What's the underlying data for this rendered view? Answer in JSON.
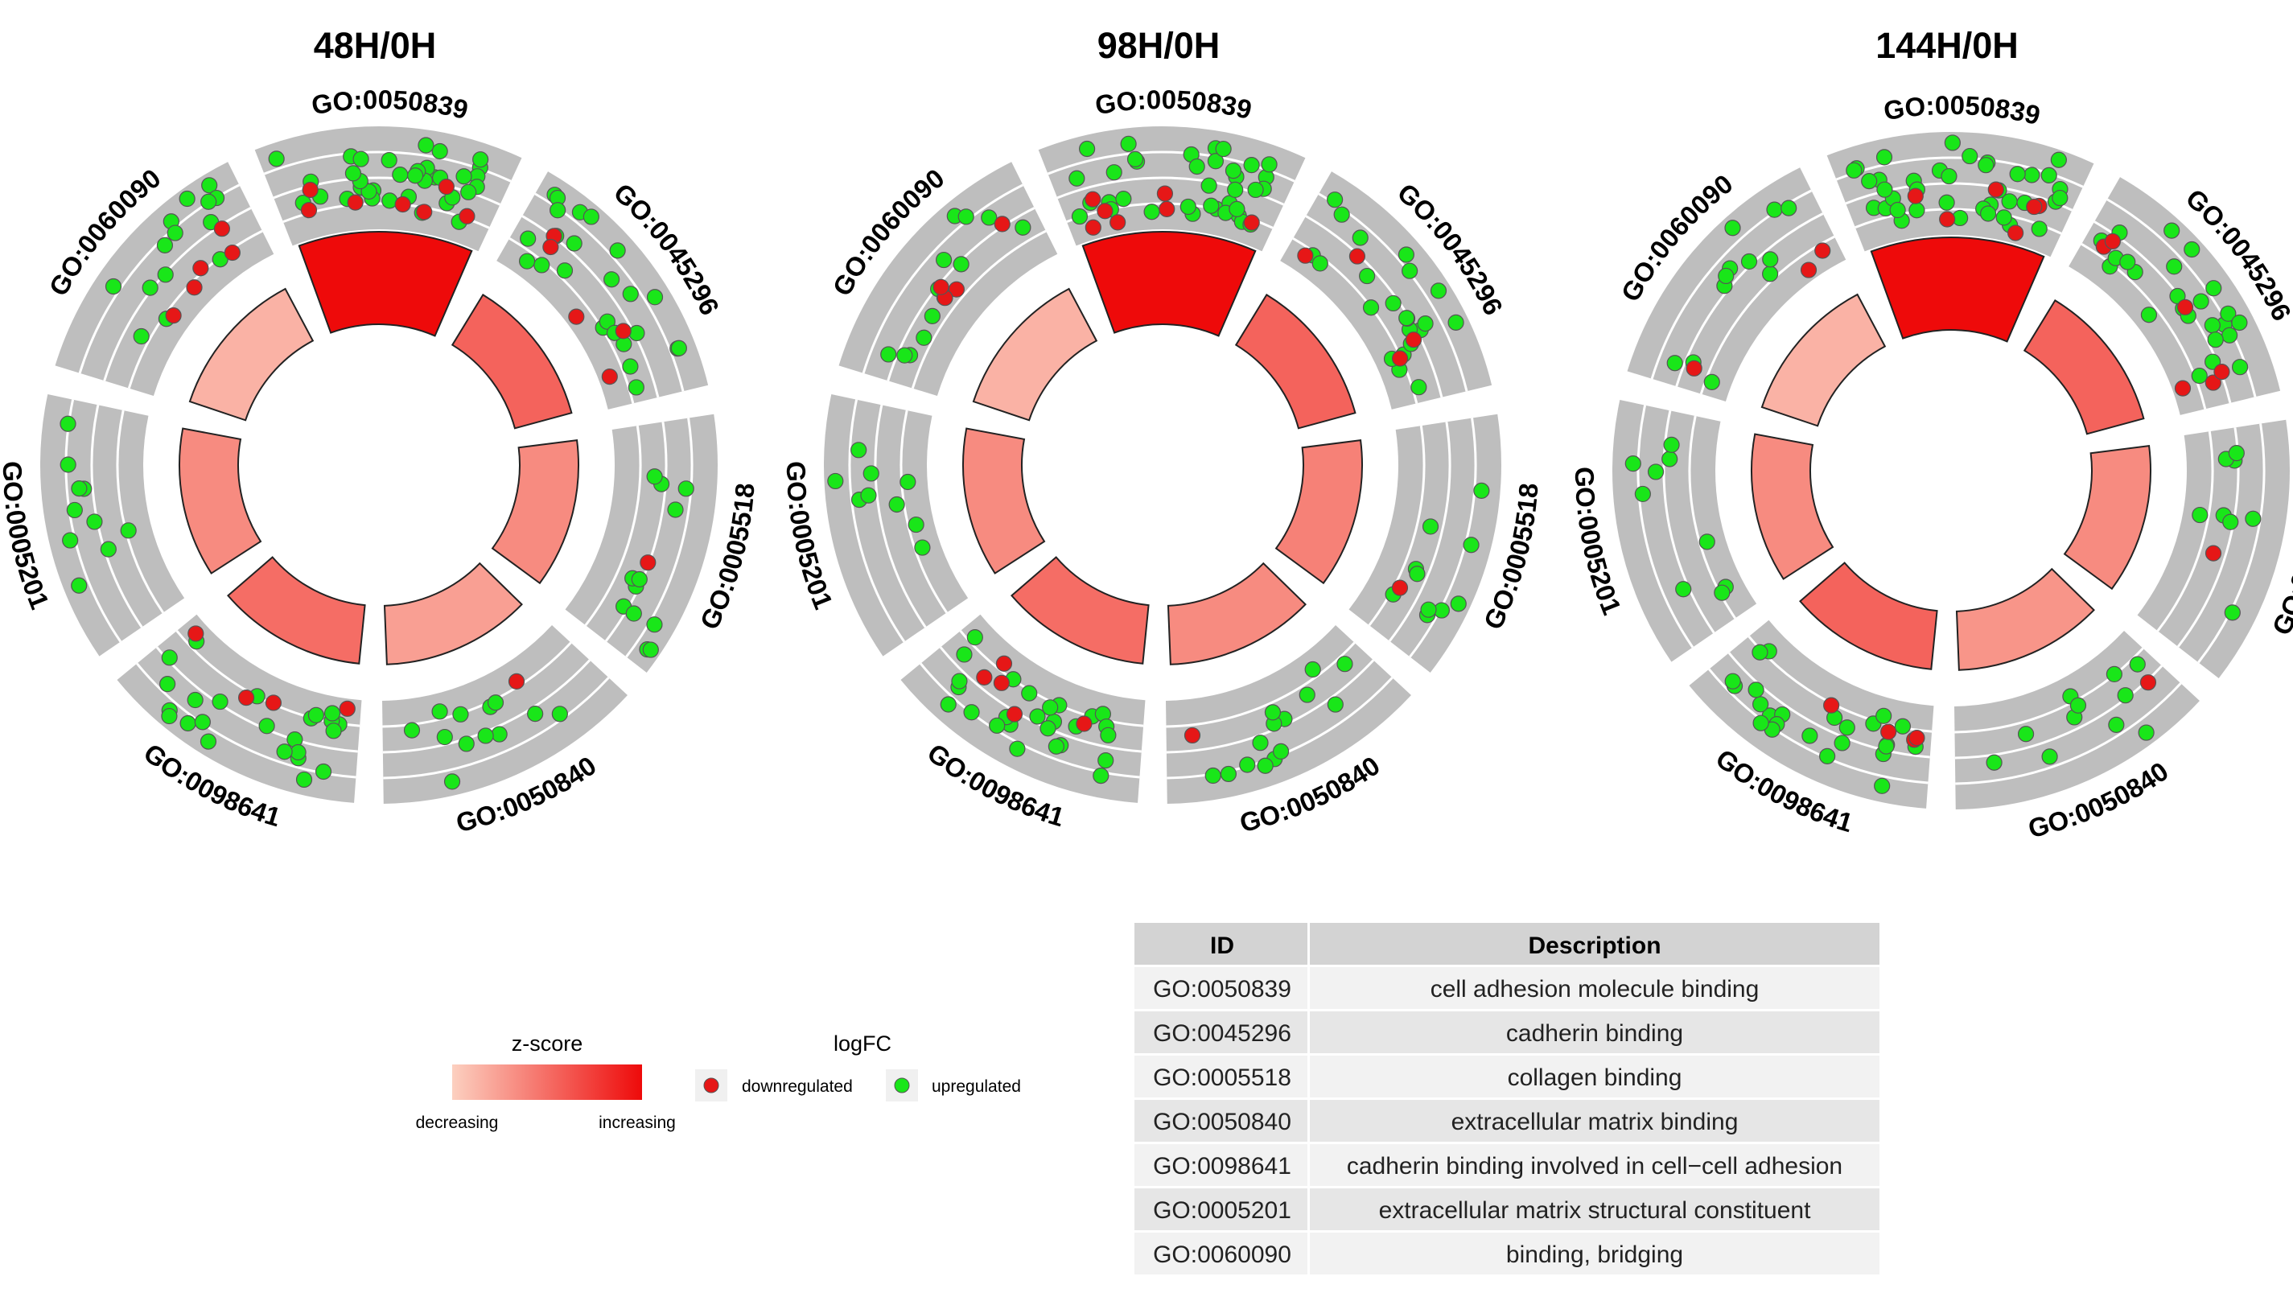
{
  "chart_data": {
    "type": "circular-go-plot",
    "panels": [
      {
        "title": "48H/0H",
        "terms": [
          {
            "id": "GO:0050839",
            "z_level": 1.0,
            "up": 36,
            "down": 7
          },
          {
            "id": "GO:0045296",
            "z_level": 0.55,
            "up": 24,
            "down": 5
          },
          {
            "id": "GO:0005518",
            "z_level": 0.35,
            "up": 12,
            "down": 1
          },
          {
            "id": "GO:0050840",
            "z_level": 0.25,
            "up": 12,
            "down": 1
          },
          {
            "id": "GO:0098641",
            "z_level": 0.5,
            "up": 24,
            "down": 4
          },
          {
            "id": "GO:0005201",
            "z_level": 0.35,
            "up": 10,
            "down": 0
          },
          {
            "id": "GO:0060090",
            "z_level": 0.15,
            "up": 14,
            "down": 5
          }
        ]
      },
      {
        "title": "98H/0H",
        "terms": [
          {
            "id": "GO:0050839",
            "z_level": 1.0,
            "up": 36,
            "down": 7
          },
          {
            "id": "GO:0045296",
            "z_level": 0.55,
            "up": 22,
            "down": 4
          },
          {
            "id": "GO:0005518",
            "z_level": 0.4,
            "up": 10,
            "down": 1
          },
          {
            "id": "GO:0050840",
            "z_level": 0.35,
            "up": 14,
            "down": 1
          },
          {
            "id": "GO:0098641",
            "z_level": 0.5,
            "up": 26,
            "down": 5
          },
          {
            "id": "GO:0005201",
            "z_level": 0.35,
            "up": 9,
            "down": 0
          },
          {
            "id": "GO:0060090",
            "z_level": 0.15,
            "up": 12,
            "down": 5
          }
        ]
      },
      {
        "title": "144H/0H",
        "terms": [
          {
            "id": "GO:0050839",
            "z_level": 1.0,
            "up": 38,
            "down": 6
          },
          {
            "id": "GO:0045296",
            "z_level": 0.55,
            "up": 24,
            "down": 6
          },
          {
            "id": "GO:0005518",
            "z_level": 0.35,
            "up": 8,
            "down": 1
          },
          {
            "id": "GO:0050840",
            "z_level": 0.3,
            "up": 11,
            "down": 1
          },
          {
            "id": "GO:0098641",
            "z_level": 0.55,
            "up": 24,
            "down": 4
          },
          {
            "id": "GO:0005201",
            "z_level": 0.35,
            "up": 9,
            "down": 0
          },
          {
            "id": "GO:0060090",
            "z_level": 0.15,
            "up": 12,
            "down": 3
          }
        ]
      }
    ],
    "legend": {
      "zscore_title": "z-score",
      "zscore_low": "decreasing",
      "zscore_high": "increasing",
      "logfc_title": "logFC",
      "down_label": "downregulated",
      "up_label": "upregulated"
    },
    "table": {
      "headers": [
        "ID",
        "Description"
      ],
      "rows": [
        [
          "GO:0050839",
          "cell adhesion molecule binding"
        ],
        [
          "GO:0045296",
          "cadherin binding"
        ],
        [
          "GO:0005518",
          "collagen binding"
        ],
        [
          "GO:0050840",
          "extracellular matrix binding"
        ],
        [
          "GO:0098641",
          "cadherin binding involved in cell−cell adhesion"
        ],
        [
          "GO:0005201",
          "extracellular matrix structural constituent"
        ],
        [
          "GO:0060090",
          "binding, bridging"
        ]
      ]
    }
  },
  "colors": {
    "up": "#19e619",
    "down": "#e61717",
    "track": "#bebebe",
    "z_low": "#fcd0c0",
    "z_high": "#ee0a0a",
    "table_header": "#d3d3d3",
    "table_odd": "#f2f2f2",
    "table_even": "#e6e6e6"
  }
}
